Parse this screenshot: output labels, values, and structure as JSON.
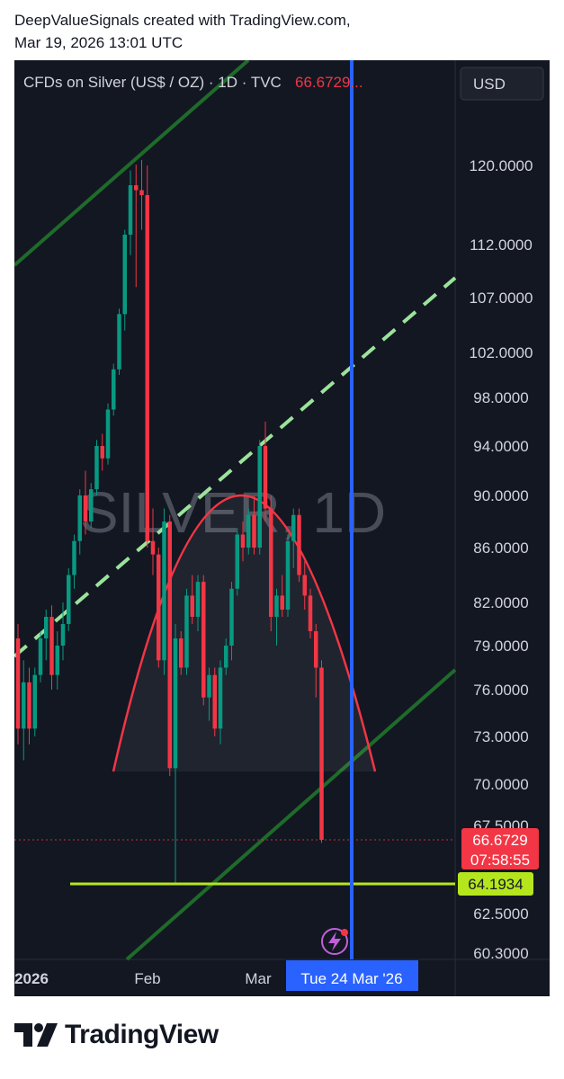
{
  "header": {
    "line1": "DeepValueSignals created with TradingView.com,",
    "line2": "Mar 19, 2026 13:01 UTC"
  },
  "footer": {
    "brand": "TradingView"
  },
  "colors": {
    "background": "#131722",
    "up": "#089981",
    "down": "#f23645",
    "channel": "#1e6b2a",
    "midline": "#9be39b",
    "arc": "#f23645",
    "support": "#b5e61d",
    "cursor": "#2962ff",
    "price_label": "#f23645",
    "support_label": "#b5e61d"
  },
  "chart_data": {
    "type": "candlestick",
    "symbol_line": "CFDs on Silver (US$ / OZ) · 1D · TVC",
    "last_price_header": "66.6729...",
    "currency_button": "USD",
    "watermark": "SILVER, 1D",
    "y_ticks": [
      "120.0000",
      "112.0000",
      "107.0000",
      "102.0000",
      "98.0000",
      "94.0000",
      "90.0000",
      "86.0000",
      "82.0000",
      "79.0000",
      "76.0000",
      "73.0000",
      "70.0000",
      "67.5000",
      "62.5000",
      "60.3000"
    ],
    "x_ticks": [
      "2026",
      "Feb",
      "Mar"
    ],
    "crosshair_date": "Tue 24 Mar '26",
    "last_price": "66.6729",
    "countdown": "07:58:55",
    "support_level": "64.1934",
    "ylim": [
      60.3,
      124
    ],
    "annotations": [
      "rising channel (two parallel lines)",
      "dashed channel midline",
      "rounded top arc",
      "horizontal support line at 64.1934",
      "vertical cursor line"
    ],
    "candles": [
      {
        "o": 79.5,
        "h": 80.5,
        "l": 72.5,
        "c": 73.5
      },
      {
        "o": 73.5,
        "h": 78.0,
        "l": 71.5,
        "c": 76.5
      },
      {
        "o": 76.5,
        "h": 77.5,
        "l": 72.5,
        "c": 73.5
      },
      {
        "o": 73.5,
        "h": 77.5,
        "l": 73.0,
        "c": 77.0
      },
      {
        "o": 77.0,
        "h": 80.0,
        "l": 76.5,
        "c": 79.5
      },
      {
        "o": 79.5,
        "h": 81.5,
        "l": 78.0,
        "c": 81.0
      },
      {
        "o": 81.0,
        "h": 81.8,
        "l": 76.0,
        "c": 77.0
      },
      {
        "o": 77.0,
        "h": 80.0,
        "l": 76.0,
        "c": 79.0
      },
      {
        "o": 79.0,
        "h": 82.0,
        "l": 78.0,
        "c": 80.5
      },
      {
        "o": 80.5,
        "h": 84.5,
        "l": 80.0,
        "c": 84.0
      },
      {
        "o": 84.0,
        "h": 87.0,
        "l": 83.0,
        "c": 86.5
      },
      {
        "o": 86.5,
        "h": 90.5,
        "l": 85.5,
        "c": 90.0
      },
      {
        "o": 90.0,
        "h": 92.0,
        "l": 87.0,
        "c": 88.0
      },
      {
        "o": 88.0,
        "h": 91.0,
        "l": 87.5,
        "c": 90.5
      },
      {
        "o": 90.5,
        "h": 94.5,
        "l": 90.0,
        "c": 94.0
      },
      {
        "o": 94.0,
        "h": 95.0,
        "l": 92.0,
        "c": 93.0
      },
      {
        "o": 93.0,
        "h": 97.5,
        "l": 92.5,
        "c": 97.0
      },
      {
        "o": 97.0,
        "h": 101.0,
        "l": 96.5,
        "c": 100.5
      },
      {
        "o": 100.5,
        "h": 106.0,
        "l": 100.0,
        "c": 105.5
      },
      {
        "o": 105.5,
        "h": 113.5,
        "l": 104.0,
        "c": 113.0
      },
      {
        "o": 113.0,
        "h": 119.5,
        "l": 111.0,
        "c": 118.0
      },
      {
        "o": 118.0,
        "h": 120.5,
        "l": 108.0,
        "c": 117.5
      },
      {
        "o": 117.5,
        "h": 123.5,
        "l": 113.5,
        "c": 117.0
      },
      {
        "o": 117.0,
        "h": 120.0,
        "l": 86.0,
        "c": 86.5
      },
      {
        "o": 86.5,
        "h": 89.0,
        "l": 84.0,
        "c": 85.5
      },
      {
        "o": 85.5,
        "h": 86.0,
        "l": 77.5,
        "c": 78.0
      },
      {
        "o": 78.0,
        "h": 89.0,
        "l": 77.0,
        "c": 88.0
      },
      {
        "o": 88.0,
        "h": 88.5,
        "l": 70.5,
        "c": 71.0
      },
      {
        "o": 71.0,
        "h": 80.5,
        "l": 64.2,
        "c": 79.5
      },
      {
        "o": 79.5,
        "h": 80.0,
        "l": 77.0,
        "c": 77.5
      },
      {
        "o": 77.5,
        "h": 83.0,
        "l": 77.0,
        "c": 82.5
      },
      {
        "o": 82.5,
        "h": 84.0,
        "l": 80.5,
        "c": 81.0
      },
      {
        "o": 81.0,
        "h": 84.0,
        "l": 80.0,
        "c": 83.5
      },
      {
        "o": 83.5,
        "h": 84.0,
        "l": 75.0,
        "c": 75.5
      },
      {
        "o": 75.5,
        "h": 77.5,
        "l": 74.0,
        "c": 77.0
      },
      {
        "o": 77.0,
        "h": 77.5,
        "l": 73.0,
        "c": 73.5
      },
      {
        "o": 73.5,
        "h": 78.0,
        "l": 72.5,
        "c": 77.5
      },
      {
        "o": 77.5,
        "h": 79.5,
        "l": 77.0,
        "c": 79.0
      },
      {
        "o": 79.0,
        "h": 83.5,
        "l": 78.0,
        "c": 83.0
      },
      {
        "o": 83.0,
        "h": 87.5,
        "l": 82.5,
        "c": 87.0
      },
      {
        "o": 87.0,
        "h": 88.0,
        "l": 85.0,
        "c": 86.0
      },
      {
        "o": 86.0,
        "h": 89.0,
        "l": 85.5,
        "c": 88.5
      },
      {
        "o": 88.5,
        "h": 90.0,
        "l": 85.5,
        "c": 86.0
      },
      {
        "o": 86.0,
        "h": 94.5,
        "l": 85.5,
        "c": 94.0
      },
      {
        "o": 94.0,
        "h": 96.0,
        "l": 88.0,
        "c": 89.0
      },
      {
        "o": 89.0,
        "h": 90.0,
        "l": 80.0,
        "c": 81.0
      },
      {
        "o": 81.0,
        "h": 83.0,
        "l": 79.0,
        "c": 82.5
      },
      {
        "o": 82.5,
        "h": 84.0,
        "l": 81.0,
        "c": 81.5
      },
      {
        "o": 81.5,
        "h": 87.0,
        "l": 81.0,
        "c": 86.5
      },
      {
        "o": 86.5,
        "h": 89.0,
        "l": 84.5,
        "c": 88.5
      },
      {
        "o": 88.5,
        "h": 89.0,
        "l": 83.5,
        "c": 84.0
      },
      {
        "o": 84.0,
        "h": 85.0,
        "l": 81.5,
        "c": 82.5
      },
      {
        "o": 82.5,
        "h": 83.0,
        "l": 79.5,
        "c": 80.0
      },
      {
        "o": 80.0,
        "h": 80.5,
        "l": 75.5,
        "c": 77.5
      },
      {
        "o": 77.5,
        "h": 78.0,
        "l": 66.5,
        "c": 66.6729
      }
    ]
  }
}
